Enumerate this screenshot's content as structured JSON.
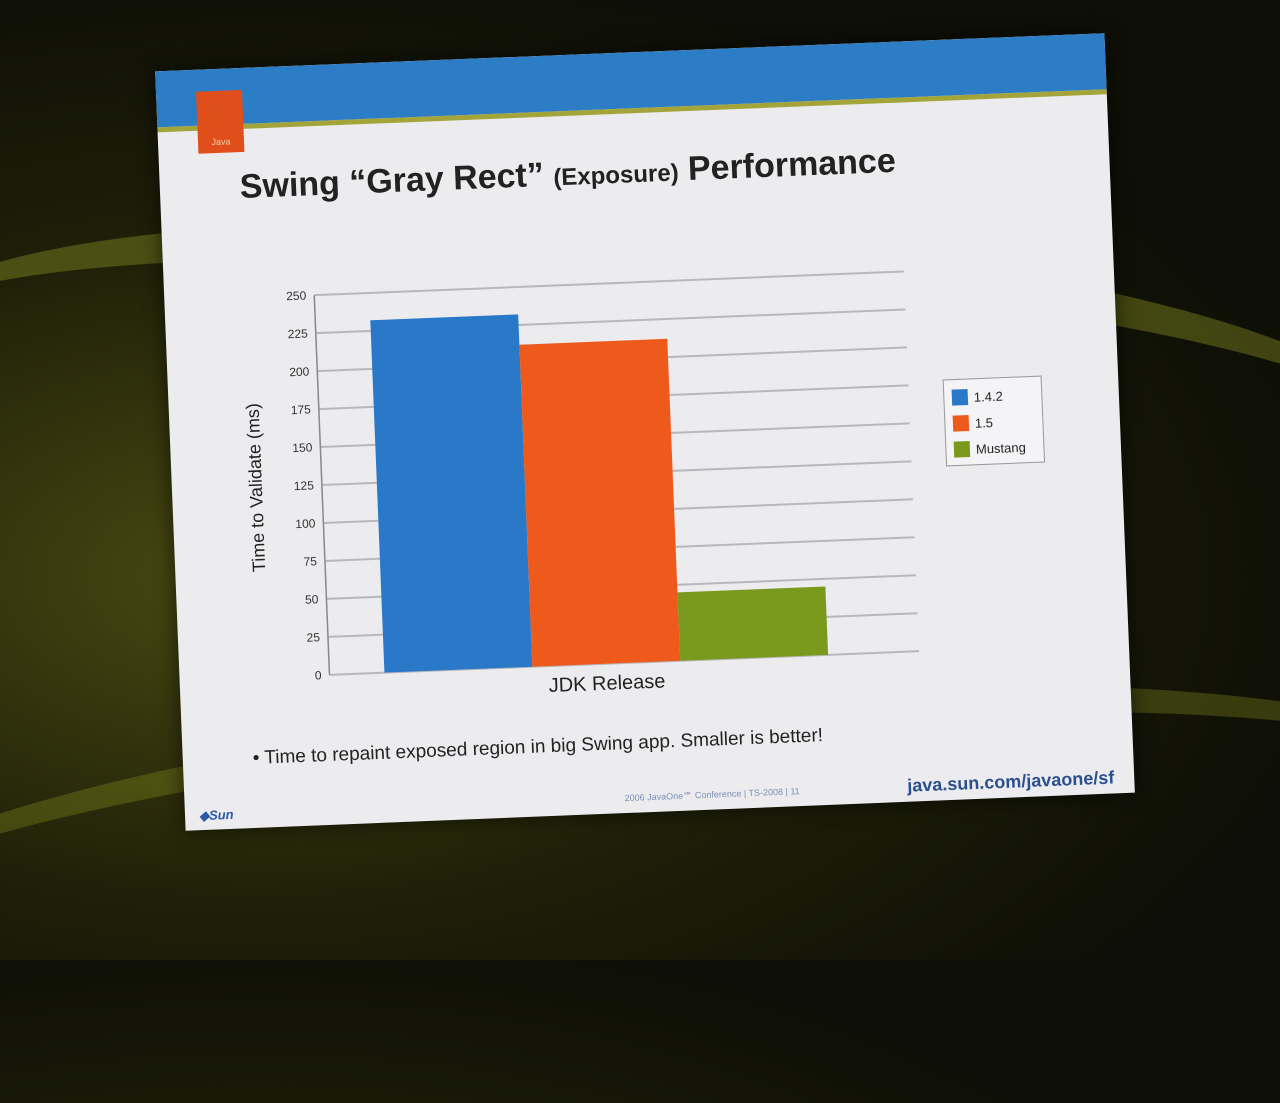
{
  "slide": {
    "logo_text": "Java",
    "title_main1": "Swing “Gray Rect”",
    "title_small": "(Exposure)",
    "title_main2": "Performance",
    "bullet": "• Time to repaint exposed region in big Swing app.  Smaller is better!",
    "footer_logo": "◆Sun",
    "footer_mid": "2006 JavaOne℠ Conference  |  TS-2008  |  11",
    "footer_url": "java.sun.com/javaone/sf"
  },
  "colors": {
    "blue": "#2a78c8",
    "orange": "#ee5a1c",
    "green": "#7a9a1e",
    "topbar": "#2c7dc6"
  },
  "chart_data": {
    "type": "bar",
    "categories": [
      "JDK Release"
    ],
    "series": [
      {
        "name": "1.4.2",
        "values": [
          232
        ],
        "color": "#2a78c8"
      },
      {
        "name": "1.5",
        "values": [
          212
        ],
        "color": "#ee5a1c"
      },
      {
        "name": "Mustang",
        "values": [
          45
        ],
        "color": "#7a9a1e"
      }
    ],
    "xlabel": "JDK Release",
    "ylabel": "Time to Validate (ms)",
    "ylim": [
      0,
      250
    ],
    "yticks": [
      "0",
      "25",
      "50",
      "75",
      "100",
      "125",
      "150",
      "175",
      "200",
      "225",
      "250"
    ],
    "grid": true,
    "legend_position": "right"
  }
}
